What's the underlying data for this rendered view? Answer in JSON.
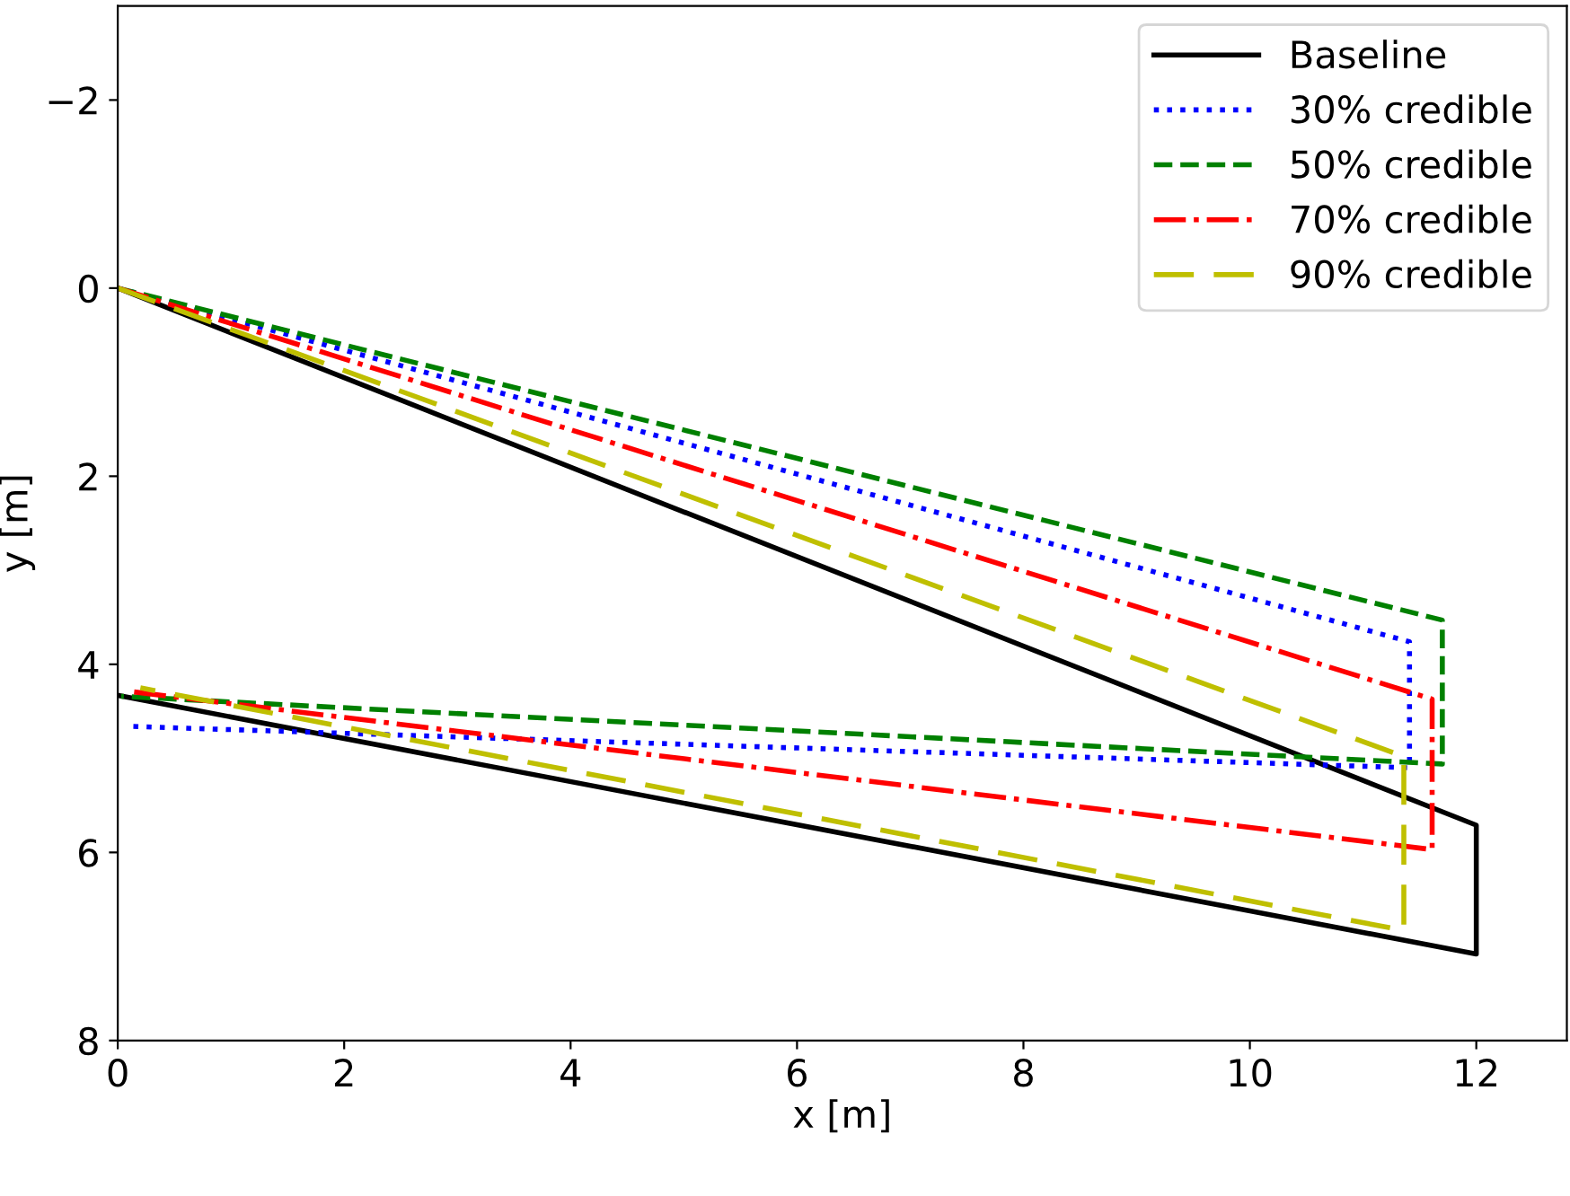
{
  "chart_data": {
    "type": "line",
    "xlabel": "x [m]",
    "ylabel": "y [m]",
    "xlim": [
      0,
      12.8
    ],
    "ylim": [
      8,
      -3
    ],
    "xticks": [
      0,
      2,
      4,
      6,
      8,
      10,
      12
    ],
    "yticks": [
      {
        "value": -2,
        "label": "−2"
      },
      0,
      2,
      4,
      6,
      8
    ],
    "grid": false,
    "legend": "top right",
    "series": [
      {
        "name": "Baseline",
        "color": "#000000",
        "line_style": "solid",
        "x": [
          0,
          12.0,
          12.0,
          0
        ],
        "values": [
          0,
          5.71,
          7.08,
          4.33
        ]
      },
      {
        "name": "30% credible",
        "color": "#0000ff",
        "line_style": "dotted",
        "x": [
          0,
          11.41,
          11.41,
          0.12
        ],
        "values": [
          0,
          3.76,
          5.1,
          4.66
        ]
      },
      {
        "name": "50% credible",
        "color": "#008000",
        "line_style": "dashed",
        "x": [
          0,
          11.7,
          11.7,
          0.03
        ],
        "values": [
          0,
          3.53,
          5.06,
          4.34
        ]
      },
      {
        "name": "70% credible",
        "color": "#ff0000",
        "line_style": "dashdot",
        "x": [
          0,
          11.61,
          11.61,
          0.12
        ],
        "values": [
          0,
          4.37,
          5.97,
          4.29
        ]
      },
      {
        "name": "90% credible",
        "color": "#bfbf00",
        "line_style": "longdash",
        "x": [
          0,
          11.36,
          11.36,
          0.2
        ],
        "values": [
          0,
          4.98,
          6.83,
          4.25
        ]
      }
    ]
  }
}
